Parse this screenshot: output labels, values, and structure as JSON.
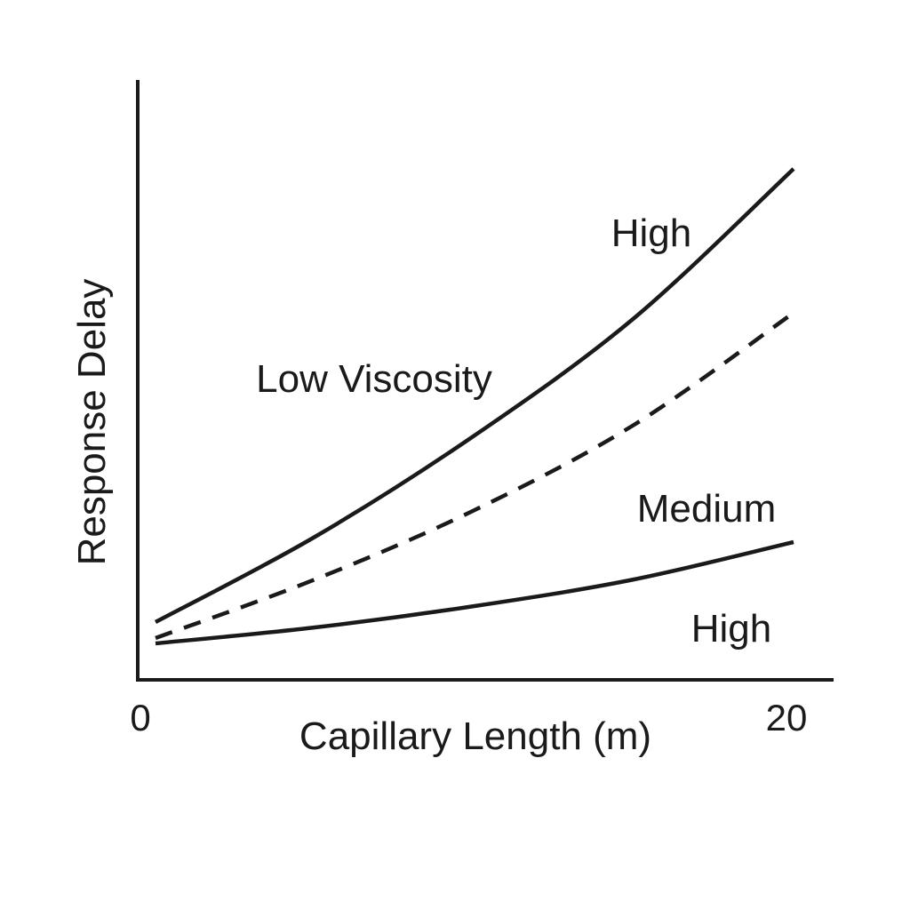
{
  "chart_data": {
    "type": "line",
    "title": "",
    "xlabel": "Capillary Length (m)",
    "ylabel": "Response Delay",
    "xlim": [
      0,
      20
    ],
    "ylim": [
      0,
      100
    ],
    "x_ticks": [
      "0",
      "20"
    ],
    "grid": false,
    "legend": "none",
    "series": [
      {
        "style": "solid",
        "x": [
          0,
          5,
          10,
          15,
          20
        ],
        "y": [
          10,
          26,
          45,
          67,
          95
        ]
      },
      {
        "style": "dashed",
        "x": [
          0,
          5,
          10,
          15,
          20
        ],
        "y": [
          7,
          18,
          31,
          47,
          68
        ]
      },
      {
        "style": "solid",
        "x": [
          0,
          5,
          10,
          15,
          20
        ],
        "y": [
          6,
          9,
          13,
          18,
          25
        ]
      }
    ],
    "annotations": [
      {
        "text": "High"
      },
      {
        "text": "Low Viscosity"
      },
      {
        "text": "Medium"
      },
      {
        "text": "High"
      }
    ]
  }
}
